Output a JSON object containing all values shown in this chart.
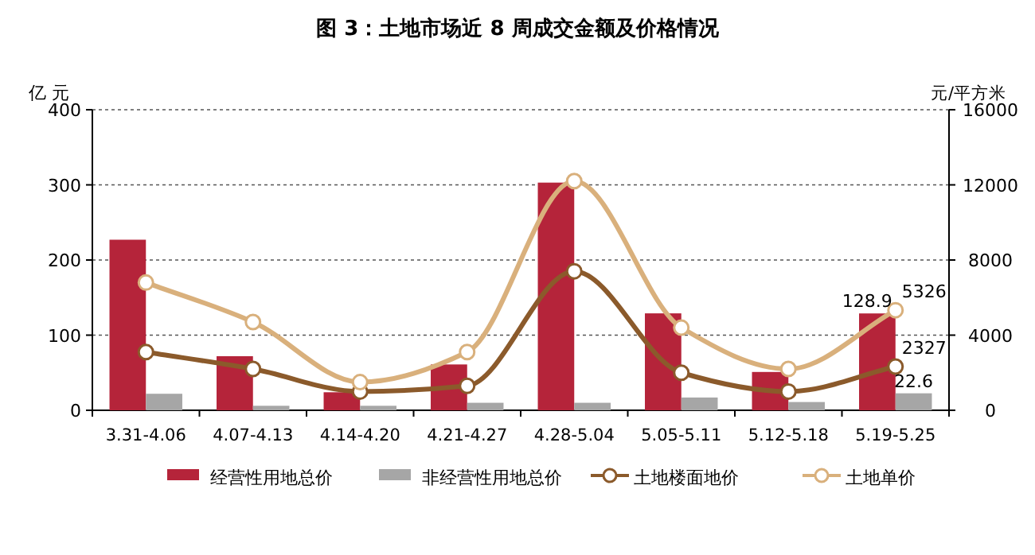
{
  "chart_data": {
    "type": "bar",
    "title": "图 3：土地市场近 8 周成交金额及价格情况",
    "ylabel": "亿 元",
    "y2label": "元/平方米",
    "categories": [
      "3.31-4.06",
      "4.07-4.13",
      "4.14-4.20",
      "4.21-4.27",
      "4.28-5.04",
      "5.05-5.11",
      "5.12-5.18",
      "5.19-5.25"
    ],
    "series": [
      {
        "name": "经营性用地总价",
        "color": "#b5243a",
        "values": [
          227,
          72,
          24,
          61,
          303,
          129,
          51,
          128.9
        ],
        "value_labels": [
          null,
          null,
          null,
          null,
          null,
          null,
          null,
          "128.9"
        ]
      },
      {
        "name": "非经营性用地总价",
        "color": "#a6a6a6",
        "values": [
          22,
          6,
          6,
          10,
          10,
          17,
          11,
          22.6
        ],
        "value_labels": [
          null,
          null,
          null,
          null,
          null,
          null,
          null,
          "22.6"
        ]
      },
      {
        "name": "土地楼面地价",
        "type": "line",
        "axis": "y2",
        "color": "#8b5a2b",
        "values": [
          3100,
          2200,
          1000,
          1300,
          7400,
          2000,
          1000,
          2327
        ],
        "value_labels": [
          null,
          null,
          null,
          null,
          null,
          null,
          null,
          "2327"
        ]
      },
      {
        "name": "土地单价",
        "type": "line",
        "axis": "y2",
        "color": "#d9b07c",
        "values": [
          6800,
          4700,
          1500,
          3100,
          12200,
          4400,
          2200,
          5326
        ],
        "value_labels": [
          null,
          null,
          null,
          null,
          null,
          null,
          null,
          "5326"
        ]
      }
    ],
    "ylim": [
      0,
      400
    ],
    "yticks": [
      0,
      100,
      200,
      300,
      400
    ],
    "y2lim": [
      0,
      16000
    ],
    "y2ticks": [
      0,
      4000,
      8000,
      12000,
      16000
    ],
    "grid": "y",
    "legend": "bottom",
    "marker": "circle",
    "line_style": "solid"
  }
}
